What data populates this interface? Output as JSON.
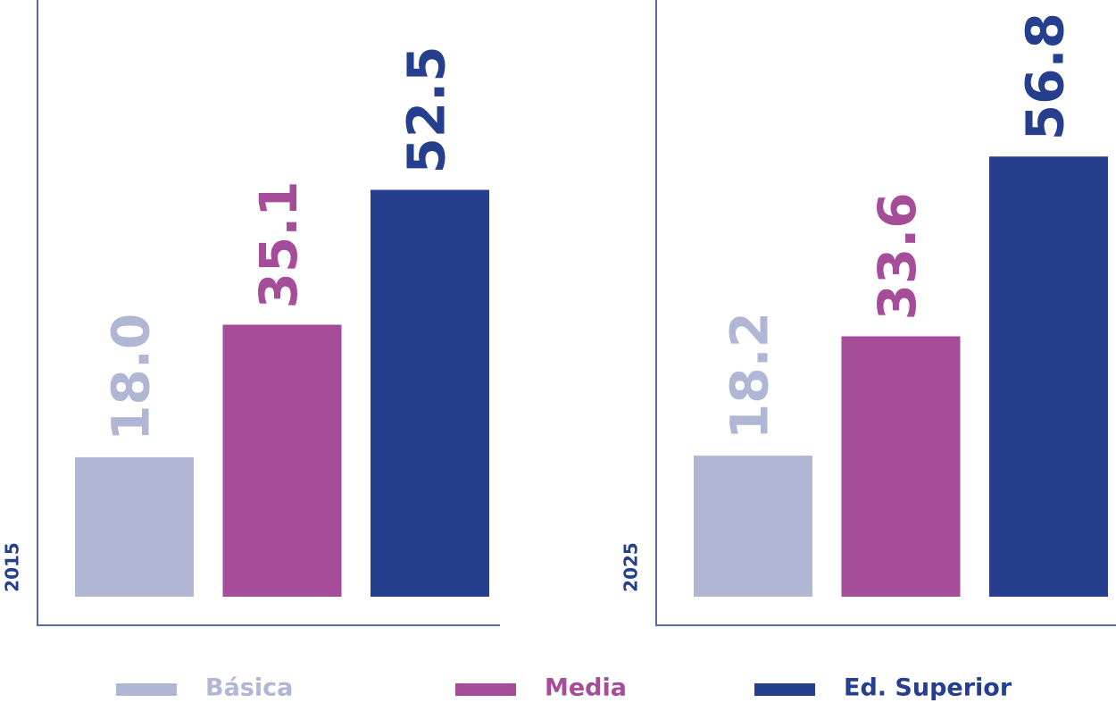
{
  "chart_data": {
    "type": "bar",
    "categories": [
      "2015",
      "2025"
    ],
    "series": [
      {
        "name": "Básica",
        "color": "#b0b6d4",
        "values": [
          18.0,
          18.2
        ],
        "value_labels": [
          "18.0",
          "18.2"
        ]
      },
      {
        "name": "Media",
        "color": "#a64d9a",
        "values": [
          35.1,
          33.6
        ],
        "value_labels": [
          "35.1",
          "33.6"
        ]
      },
      {
        "name": "Ed. Superior",
        "color": "#263e8e",
        "values": [
          52.5,
          56.8
        ],
        "value_labels": [
          "52.5",
          "56.8"
        ]
      }
    ],
    "ylim": [
      0,
      77
    ]
  }
}
